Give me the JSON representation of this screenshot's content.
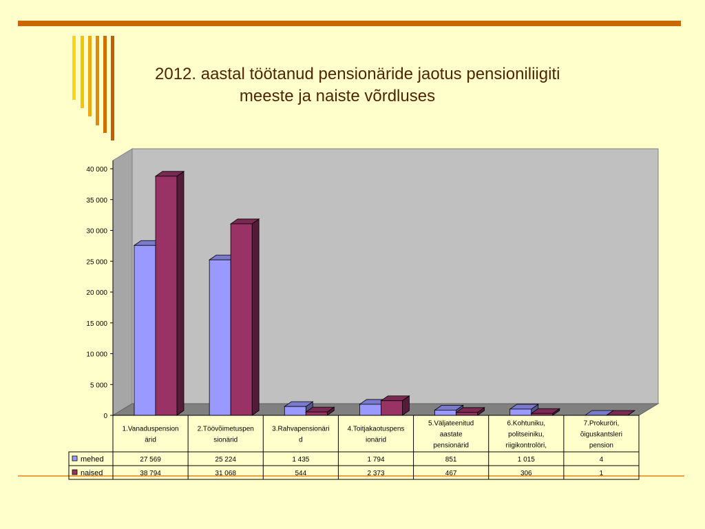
{
  "title_lines": [
    "2012. aastal töötanud pensionäride jaotus pensioniliigiti",
    "meeste ja naiste võrdluses"
  ],
  "colors": {
    "accent_rule": "#CC6600",
    "bottom_rule": "#E8A040",
    "background": "#FFFFCC",
    "title_text": "#4D2600",
    "deco_bars": [
      "#FFD21E",
      "#F5C400",
      "#EBAA14",
      "#DC8C0A",
      "#CC7000",
      "#C05E00"
    ],
    "mehed": "#9999FF",
    "naised": "#993366"
  },
  "chart_data": {
    "type": "bar",
    "title": "2012. aastal töötanud pensionäride jaotus pensioniliigiti meeste ja naiste võrdluses",
    "categories": [
      [
        "1.Vanaduspension",
        "ärid"
      ],
      [
        "2.Töövõimetuspen",
        "sionärid"
      ],
      [
        "3.Rahvapensionäri",
        "d"
      ],
      [
        "4.Toitjakaotuspens",
        "ionärid"
      ],
      [
        "5.Väljateenitud",
        "aastate",
        "pensionärid"
      ],
      [
        "6.Kohtuniku,",
        "politseiniku,",
        "riigikontrolöri,"
      ],
      [
        "7.Prokuröri,",
        "õiguskantsleri",
        "pension"
      ]
    ],
    "series": [
      {
        "name": "mehed",
        "values": [
          27569,
          25224,
          1435,
          1794,
          851,
          1015,
          4
        ],
        "labels": [
          "27 569",
          "25 224",
          "1 435",
          "1 794",
          "851",
          "1 015",
          "4"
        ]
      },
      {
        "name": "naised",
        "values": [
          38794,
          31068,
          544,
          2373,
          467,
          306,
          1
        ],
        "labels": [
          "38 794",
          "31 068",
          "544",
          "2 373",
          "467",
          "306",
          "1"
        ]
      }
    ],
    "ylim": [
      0,
      40000
    ],
    "yticks": [
      0,
      5000,
      10000,
      15000,
      20000,
      25000,
      30000,
      35000,
      40000
    ],
    "ytick_labels": [
      "0",
      "5 000",
      "10 000",
      "15 000",
      "20 000",
      "25 000",
      "30 000",
      "35 000",
      "40 000"
    ],
    "gridlines": false,
    "legend": "data-table",
    "view": "3d-clustered-column"
  }
}
